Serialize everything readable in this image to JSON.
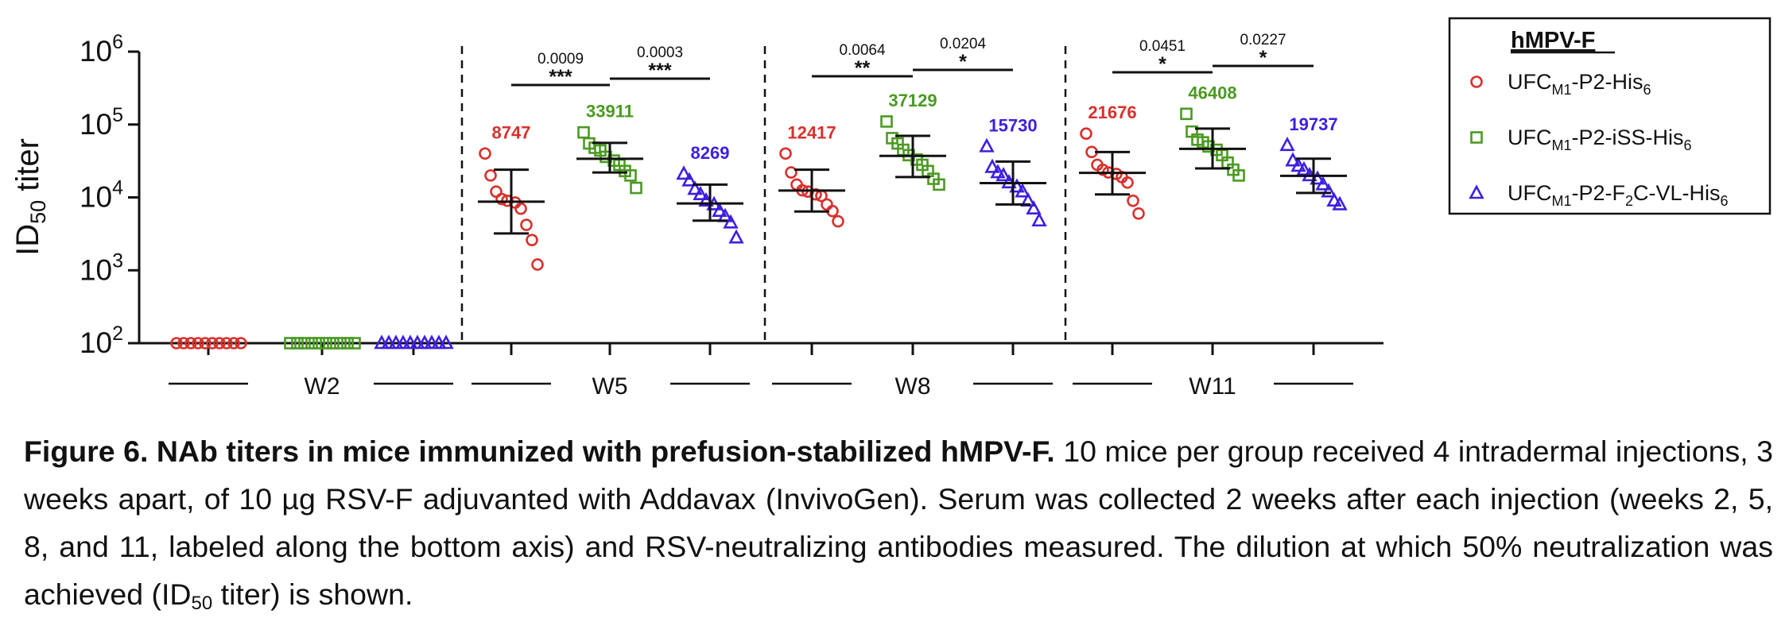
{
  "chart_data": {
    "type": "scatter",
    "y_scale": "log",
    "ylim": [
      100,
      1000000
    ],
    "ylabel": "ID50 titer",
    "yticks": [
      {
        "value": 100,
        "base": "10",
        "exp": "2"
      },
      {
        "value": 1000,
        "base": "10",
        "exp": "3"
      },
      {
        "value": 10000,
        "base": "10",
        "exp": "4"
      },
      {
        "value": 100000,
        "base": "10",
        "exp": "5"
      },
      {
        "value": 1000000,
        "base": "10",
        "exp": "6"
      }
    ],
    "timepoints": [
      "W2",
      "W5",
      "W8",
      "W11"
    ],
    "legend": {
      "title": "hMPV-F",
      "position": "top-right",
      "entries": [
        {
          "id": "his",
          "pre": "UFC",
          "sub1": "M1",
          "mid": "-P2-His",
          "sub2": "6",
          "post": "",
          "marker": "circle",
          "color": "#d9302c"
        },
        {
          "id": "iss",
          "pre": "UFC",
          "sub1": "M1",
          "mid": "-P2-iSS-His",
          "sub2": "6",
          "post": "",
          "marker": "square",
          "color": "#4a9a22"
        },
        {
          "id": "f2c",
          "pre": "UFC",
          "sub1": "M1",
          "mid": "-P2-F",
          "sub2": "2",
          "post": "C-VL-His",
          "sub3": "6",
          "marker": "triangle",
          "color": "#3d1fe0"
        }
      ]
    },
    "series": [
      {
        "id": "his",
        "marker": "circle",
        "color": "#d9302c",
        "points": [
          [
            100,
            100,
            100,
            100,
            100,
            100,
            100,
            100,
            100,
            100
          ],
          [
            40000,
            20000,
            12000,
            9500,
            9000,
            8500,
            7000,
            4200,
            2600,
            1200
          ],
          [
            40000,
            22000,
            15000,
            12500,
            12000,
            11000,
            10500,
            8000,
            6500,
            4700
          ],
          [
            75000,
            42000,
            28000,
            24000,
            22000,
            21000,
            19000,
            16000,
            9000,
            6000
          ]
        ],
        "center": [
          100,
          8747,
          12417,
          21676
        ],
        "err_lo": [
          100,
          3200,
          6400,
          11000
        ],
        "err_hi": [
          100,
          24000,
          24000,
          42000
        ],
        "labels": [
          "",
          "8747",
          "12417",
          "21676"
        ]
      },
      {
        "id": "iss",
        "marker": "square",
        "color": "#4a9a22",
        "points": [
          [
            100,
            100,
            100,
            100,
            100,
            100,
            100,
            100,
            100,
            100
          ],
          [
            78000,
            55000,
            48000,
            44000,
            36000,
            32000,
            28000,
            23000,
            20000,
            13500
          ],
          [
            110000,
            65000,
            55000,
            45000,
            38000,
            33000,
            28000,
            23000,
            18000,
            15000
          ],
          [
            140000,
            80000,
            62000,
            57000,
            50000,
            45000,
            38000,
            30000,
            24000,
            20000
          ]
        ],
        "center": [
          100,
          33911,
          37129,
          46408
        ],
        "err_lo": [
          100,
          22000,
          19000,
          25000
        ],
        "err_hi": [
          100,
          56000,
          70000,
          88000
        ],
        "labels": [
          "",
          "33911",
          "37129",
          "46408"
        ]
      },
      {
        "id": "f2c",
        "marker": "triangle",
        "color": "#3d1fe0",
        "points": [
          [
            100,
            100,
            100,
            100,
            100,
            100,
            100,
            100,
            100,
            100
          ],
          [
            21000,
            17000,
            13000,
            11000,
            9000,
            8000,
            6500,
            5500,
            4500,
            2800
          ],
          [
            50000,
            26000,
            22000,
            20000,
            16000,
            14000,
            12000,
            9000,
            7000,
            4800
          ],
          [
            52000,
            32000,
            27000,
            24000,
            20000,
            18000,
            15000,
            12000,
            9000,
            8000
          ]
        ],
        "center": [
          100,
          8269,
          15730,
          19737
        ],
        "err_lo": [
          100,
          4800,
          8000,
          11500
        ],
        "err_hi": [
          100,
          15000,
          31000,
          34000
        ],
        "labels": [
          "",
          "8269",
          "15730",
          "19737"
        ]
      }
    ],
    "comparisons": [
      {
        "timepoint": 1,
        "from": 0,
        "to": 1,
        "pvalue": "0.0009",
        "stars": "***"
      },
      {
        "timepoint": 1,
        "from": 1,
        "to": 2,
        "pvalue": "0.0003",
        "stars": "***"
      },
      {
        "timepoint": 2,
        "from": 0,
        "to": 1,
        "pvalue": "0.0064",
        "stars": "**"
      },
      {
        "timepoint": 2,
        "from": 1,
        "to": 2,
        "pvalue": "0.0204",
        "stars": "*"
      },
      {
        "timepoint": 3,
        "from": 0,
        "to": 1,
        "pvalue": "0.0451",
        "stars": "*"
      },
      {
        "timepoint": 3,
        "from": 1,
        "to": 2,
        "pvalue": "0.0227",
        "stars": "*"
      }
    ]
  },
  "caption": {
    "bold": "Figure 6. NAb titers in mice immunized with prefusion-stabilized hMPV-F.",
    "text1": " 10 mice per group received 4 intradermal injections, 3 weeks apart, of 10 µg RSV-F adjuvanted with Addavax (InvivoGen). Serum was collected 2 weeks after each injection (weeks 2, 5, 8, and 11, labeled along the bottom axis) and RSV-neutralizing antibodies measured. The dilution at which 50% neutralization was achieved (ID",
    "sub": "50",
    "text2": " titer) is shown."
  }
}
